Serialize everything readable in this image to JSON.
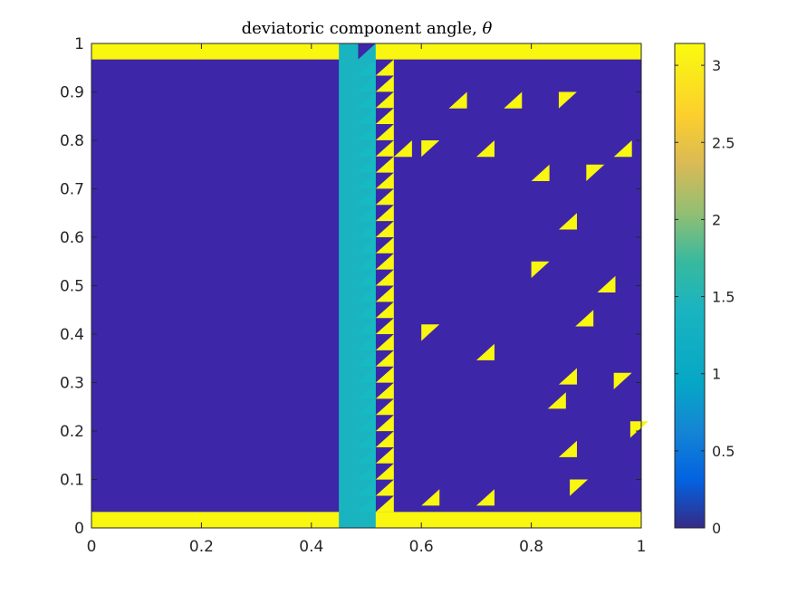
{
  "chart_data": {
    "type": "heatmap",
    "title": "deviatoric component angle, ",
    "title_symbol": "θ",
    "xlabel": "",
    "ylabel": "",
    "xlim": [
      0,
      1
    ],
    "ylim": [
      0,
      1
    ],
    "x_ticks": [
      "0",
      "0.2",
      "0.4",
      "0.6",
      "0.8",
      "1"
    ],
    "y_ticks": [
      "0",
      "0.1",
      "0.2",
      "0.3",
      "0.4",
      "0.5",
      "0.6",
      "0.7",
      "0.8",
      "0.9",
      "1"
    ],
    "colorbar": {
      "colormap": "parula",
      "range": [
        0,
        3.14159
      ],
      "ticks": [
        "0",
        "0.5",
        "1",
        "1.5",
        "2",
        "2.5",
        "3"
      ],
      "tick_values": [
        0,
        0.5,
        1,
        1.5,
        2,
        2.5,
        3
      ]
    },
    "colors": {
      "low": "#3e26a8",
      "mid": "#1ab4c1",
      "high": "#f9f60f"
    },
    "field": {
      "background_value": 0,
      "regions": [
        {
          "name": "bottom band",
          "x": [
            0,
            1
          ],
          "y": [
            0,
            0.033
          ],
          "value": 3.14
        },
        {
          "name": "top band",
          "x": [
            0,
            1
          ],
          "y": [
            0.967,
            1
          ],
          "value": 3.14
        },
        {
          "name": "vertical band",
          "x": [
            0.45,
            0.517
          ],
          "y": [
            0,
            1
          ],
          "value": 1.45
        }
      ],
      "edge_triangle_column": {
        "x": [
          0.517,
          0.55
        ],
        "y": [
          0.033,
          0.967
        ],
        "value": 3.14
      },
      "scattered_triangles": [
        {
          "x": 0.55,
          "y": 0.8,
          "value": 3.14
        },
        {
          "x": 0.6,
          "y": 0.8,
          "value": 3.14
        },
        {
          "x": 0.65,
          "y": 0.9,
          "value": 3.14
        },
        {
          "x": 0.75,
          "y": 0.9,
          "value": 3.14
        },
        {
          "x": 0.85,
          "y": 0.9,
          "value": 3.14
        },
        {
          "x": 0.7,
          "y": 0.8,
          "value": 3.14
        },
        {
          "x": 0.8,
          "y": 0.75,
          "value": 3.14
        },
        {
          "x": 0.9,
          "y": 0.75,
          "value": 3.14
        },
        {
          "x": 0.95,
          "y": 0.8,
          "value": 3.14
        },
        {
          "x": 0.85,
          "y": 0.65,
          "value": 3.14
        },
        {
          "x": 0.8,
          "y": 0.55,
          "value": 3.14
        },
        {
          "x": 0.92,
          "y": 0.52,
          "value": 3.14
        },
        {
          "x": 0.88,
          "y": 0.45,
          "value": 3.14
        },
        {
          "x": 0.6,
          "y": 0.42,
          "value": 3.14
        },
        {
          "x": 0.7,
          "y": 0.38,
          "value": 3.14
        },
        {
          "x": 0.85,
          "y": 0.33,
          "value": 3.14
        },
        {
          "x": 0.95,
          "y": 0.32,
          "value": 3.14
        },
        {
          "x": 0.83,
          "y": 0.28,
          "value": 3.14
        },
        {
          "x": 0.85,
          "y": 0.18,
          "value": 3.14
        },
        {
          "x": 0.98,
          "y": 0.22,
          "value": 3.14
        },
        {
          "x": 0.7,
          "y": 0.08,
          "value": 3.14
        },
        {
          "x": 0.6,
          "y": 0.08,
          "value": 3.14
        },
        {
          "x": 0.87,
          "y": 0.1,
          "value": 3.14
        }
      ]
    }
  }
}
